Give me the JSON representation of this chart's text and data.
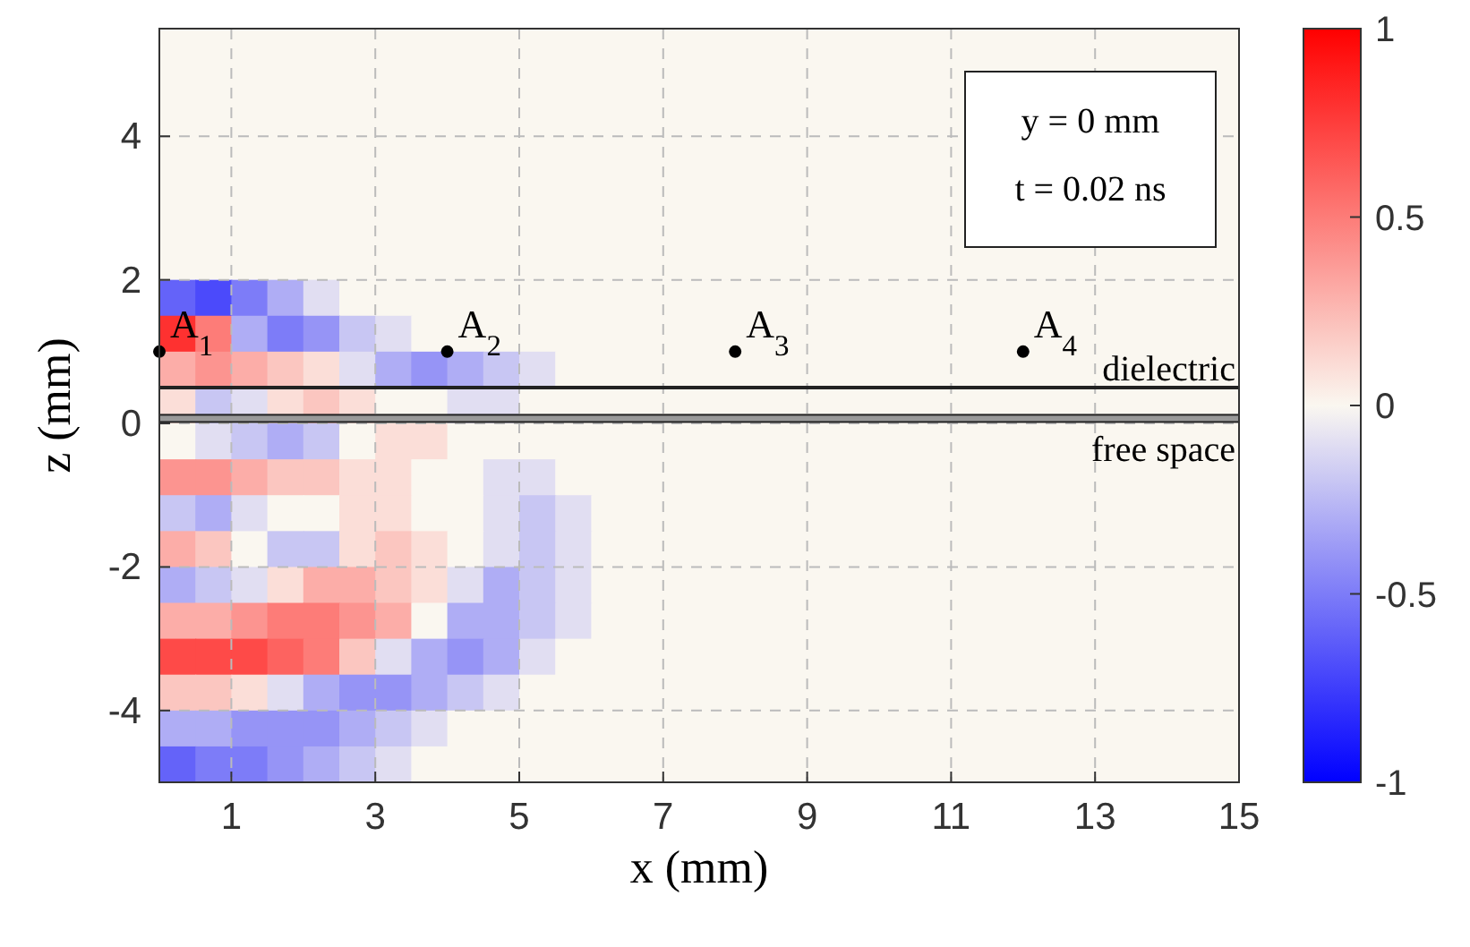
{
  "chart_data": {
    "type": "heatmap",
    "xlabel": "x (mm)",
    "ylabel": "z (mm)",
    "xlim": [
      0,
      15
    ],
    "ylim": [
      -5,
      5.5
    ],
    "xticks": [
      1,
      3,
      5,
      7,
      9,
      11,
      13,
      15
    ],
    "yticks": [
      -4,
      -2,
      0,
      2,
      4
    ],
    "clim": [
      -1,
      1
    ],
    "cticks": [
      -1,
      -0.5,
      0,
      0.5,
      1
    ],
    "grid": true,
    "cells": [
      [
        0,
        0,
        0,
        0,
        0,
        0,
        0,
        0,
        0,
        0,
        0,
        0,
        0,
        0,
        0,
        0,
        0,
        0,
        0,
        0,
        0,
        0,
        0,
        0,
        0,
        0,
        0,
        0,
        0,
        0
      ],
      [
        0,
        0,
        0,
        0,
        0,
        0,
        0,
        0,
        0,
        0,
        0,
        0,
        0,
        0,
        0,
        0,
        0,
        0,
        0,
        0,
        0,
        0,
        0,
        0,
        0,
        0,
        0,
        0,
        0,
        0
      ],
      [
        0,
        0,
        0,
        0,
        0,
        0,
        0,
        0,
        0,
        0,
        0,
        0,
        0,
        0,
        0,
        0,
        0,
        0,
        0,
        0,
        0,
        0,
        0,
        0,
        0,
        0,
        0,
        0,
        0,
        0
      ],
      [
        0,
        0,
        0,
        0,
        0,
        0,
        0,
        0,
        0,
        0,
        0,
        0,
        0,
        0,
        0,
        0,
        0,
        0,
        0,
        0,
        0,
        0,
        0,
        0,
        0,
        0,
        0,
        0,
        0,
        0
      ],
      [
        0,
        0,
        0,
        0,
        0,
        0,
        0,
        0,
        0,
        0,
        0,
        0,
        0,
        0,
        0,
        0,
        0,
        0,
        0,
        0,
        0,
        0,
        0,
        0,
        0,
        0,
        0,
        0,
        0,
        0
      ],
      [
        0,
        0,
        0,
        0,
        0,
        0,
        0,
        0,
        0,
        0,
        0,
        0,
        0,
        0,
        0,
        0,
        0,
        0,
        0,
        0,
        0,
        0,
        0,
        0,
        0,
        0,
        0,
        0,
        0,
        0
      ],
      [
        0,
        0,
        0,
        0,
        0,
        0,
        0,
        0,
        0,
        0,
        0,
        0,
        0,
        0,
        0,
        0,
        0,
        0,
        0,
        0,
        0,
        0,
        0,
        0,
        0,
        0,
        0,
        0,
        0,
        0
      ],
      [
        -0.6,
        -0.7,
        -0.5,
        -0.3,
        -0.1,
        0,
        0,
        0,
        0,
        0,
        0,
        0,
        0,
        0,
        0,
        0,
        0,
        0,
        0,
        0,
        0,
        0,
        0,
        0,
        0,
        0,
        0,
        0,
        0,
        0
      ],
      [
        0.8,
        0.5,
        -0.3,
        -0.5,
        -0.4,
        -0.2,
        -0.1,
        0,
        0,
        0,
        0,
        0,
        0,
        0,
        0,
        0,
        0,
        0,
        0,
        0,
        0,
        0,
        0,
        0,
        0,
        0,
        0,
        0,
        0,
        0
      ],
      [
        0.3,
        0.4,
        0.3,
        0.2,
        0.1,
        -0.1,
        -0.3,
        -0.4,
        -0.3,
        -0.2,
        -0.1,
        0,
        0,
        0,
        0,
        0,
        0,
        0,
        0,
        0,
        0,
        0,
        0,
        0,
        0,
        0,
        0,
        0,
        0,
        0
      ],
      [
        0.1,
        -0.2,
        -0.1,
        0.1,
        0.2,
        0.1,
        0,
        0,
        -0.1,
        -0.1,
        0,
        0,
        0,
        0,
        0,
        0,
        0,
        0,
        0,
        0,
        0,
        0,
        0,
        0,
        0,
        0,
        0,
        0,
        0,
        0
      ],
      [
        0,
        -0.1,
        -0.2,
        -0.3,
        -0.2,
        0,
        0.1,
        0.1,
        0,
        0,
        0,
        0,
        0,
        0,
        0,
        0,
        0,
        0,
        0,
        0,
        0,
        0,
        0,
        0,
        0,
        0,
        0,
        0,
        0,
        0
      ],
      [
        0.4,
        0.4,
        0.3,
        0.2,
        0.2,
        0.1,
        0.1,
        0,
        0,
        -0.1,
        -0.1,
        0,
        0,
        0,
        0,
        0,
        0,
        0,
        0,
        0,
        0,
        0,
        0,
        0,
        0,
        0,
        0,
        0,
        0,
        0
      ],
      [
        -0.2,
        -0.3,
        -0.1,
        0,
        0,
        0.1,
        0.1,
        0,
        0,
        -0.1,
        -0.2,
        -0.1,
        0,
        0,
        0,
        0,
        0,
        0,
        0,
        0,
        0,
        0,
        0,
        0,
        0,
        0,
        0,
        0,
        0,
        0
      ],
      [
        0.3,
        0.2,
        0,
        -0.2,
        -0.2,
        0.1,
        0.2,
        0.1,
        0,
        -0.1,
        -0.2,
        -0.1,
        0,
        0,
        0,
        0,
        0,
        0,
        0,
        0,
        0,
        0,
        0,
        0,
        0,
        0,
        0,
        0,
        0,
        0
      ],
      [
        -0.3,
        -0.2,
        -0.1,
        0.1,
        0.3,
        0.3,
        0.2,
        0.1,
        -0.1,
        -0.3,
        -0.2,
        -0.1,
        0,
        0,
        0,
        0,
        0,
        0,
        0,
        0,
        0,
        0,
        0,
        0,
        0,
        0,
        0,
        0,
        0,
        0
      ],
      [
        0.3,
        0.3,
        0.4,
        0.5,
        0.5,
        0.4,
        0.3,
        0,
        -0.3,
        -0.3,
        -0.2,
        -0.1,
        0,
        0,
        0,
        0,
        0,
        0,
        0,
        0,
        0,
        0,
        0,
        0,
        0,
        0,
        0,
        0,
        0,
        0
      ],
      [
        0.7,
        0.7,
        0.7,
        0.6,
        0.5,
        0.2,
        -0.1,
        -0.3,
        -0.4,
        -0.3,
        -0.1,
        0,
        0,
        0,
        0,
        0,
        0,
        0,
        0,
        0,
        0,
        0,
        0,
        0,
        0,
        0,
        0,
        0,
        0,
        0
      ],
      [
        0.2,
        0.2,
        0.1,
        -0.1,
        -0.3,
        -0.4,
        -0.4,
        -0.3,
        -0.2,
        -0.1,
        0,
        0,
        0,
        0,
        0,
        0,
        0,
        0,
        0,
        0,
        0,
        0,
        0,
        0,
        0,
        0,
        0,
        0,
        0,
        0
      ],
      [
        -0.3,
        -0.3,
        -0.4,
        -0.4,
        -0.4,
        -0.3,
        -0.2,
        -0.1,
        0,
        0,
        0,
        0,
        0,
        0,
        0,
        0,
        0,
        0,
        0,
        0,
        0,
        0,
        0,
        0,
        0,
        0,
        0,
        0,
        0,
        0
      ],
      [
        -0.6,
        -0.5,
        -0.5,
        -0.4,
        -0.3,
        -0.2,
        -0.1,
        0,
        0,
        0,
        0,
        0,
        0,
        0,
        0,
        0,
        0,
        0,
        0,
        0,
        0,
        0,
        0,
        0,
        0,
        0,
        0,
        0,
        0,
        0
      ]
    ],
    "ref_lines": [
      {
        "axis": "y",
        "value": 0.5,
        "label": "dielectric"
      }
    ],
    "bands": [
      {
        "axis": "y",
        "from": 0.02,
        "to": 0.12,
        "label": "free space",
        "color": "#999999"
      }
    ],
    "annotations": [
      {
        "text": "A$_{1}$",
        "x": 0,
        "y": 1
      },
      {
        "text": "A$_{2}$",
        "x": 4,
        "y": 1
      },
      {
        "text": "A$_{3}$",
        "x": 8,
        "y": 1
      },
      {
        "text": "A$_{4}$",
        "x": 12,
        "y": 1
      },
      "y = 0 mm",
      "t = 0.02 ns"
    ]
  }
}
